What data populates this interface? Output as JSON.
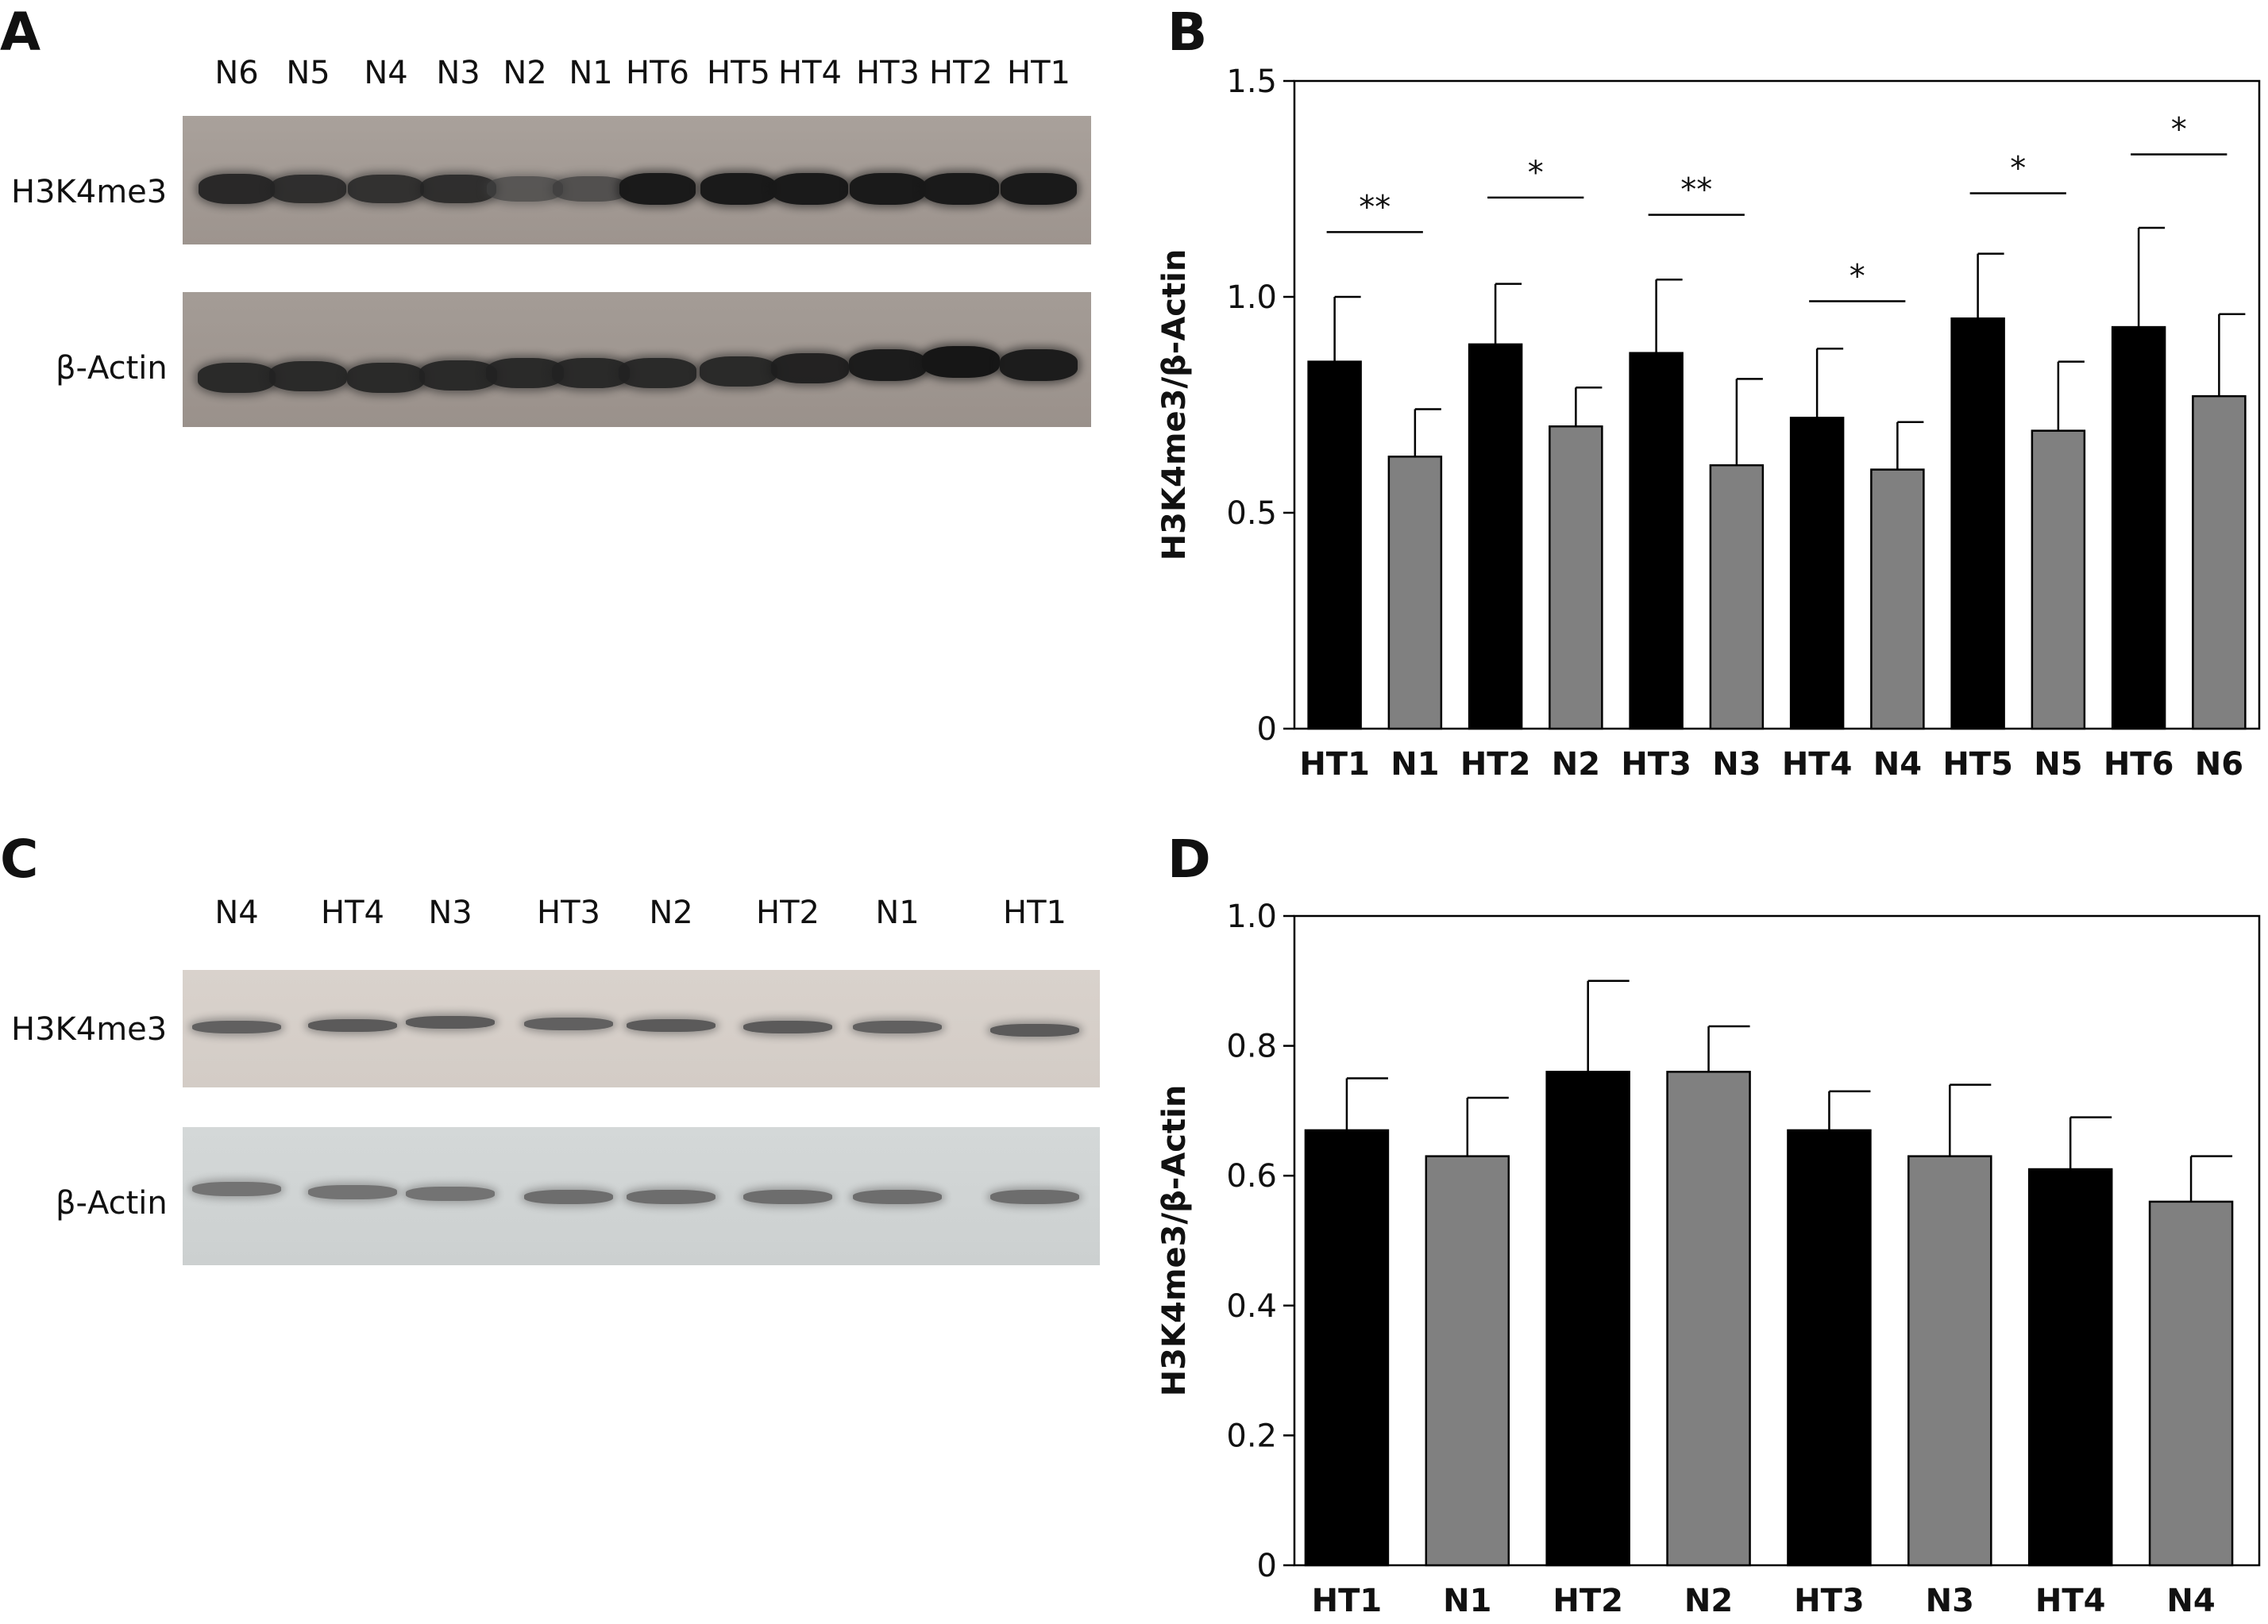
{
  "panels": {
    "A": {
      "letter": "A",
      "lanes": [
        "N6",
        "N5",
        "N4",
        "N3",
        "N2",
        "N1",
        "HT6",
        "HT5",
        "HT4",
        "HT3",
        "HT2",
        "HT1"
      ],
      "rows": [
        "H3K4me3",
        "β-Actin"
      ],
      "h3_intensity": [
        0.85,
        0.8,
        0.78,
        0.8,
        0.45,
        0.5,
        0.95,
        0.95,
        0.95,
        0.95,
        0.95,
        0.95
      ],
      "actin_intensity": [
        0.85,
        0.85,
        0.85,
        0.85,
        0.85,
        0.85,
        0.85,
        0.85,
        0.9,
        0.95,
        1.0,
        0.95
      ]
    },
    "C": {
      "letter": "C",
      "lanes": [
        "N4",
        "HT4",
        "N3",
        "HT3",
        "N2",
        "HT2",
        "N1",
        "HT1"
      ],
      "rows": [
        "H3K4me3",
        "β-Actin"
      ]
    }
  },
  "chart_data": [
    {
      "letter": "B",
      "type": "bar",
      "categories": [
        "HT1",
        "N1",
        "HT2",
        "N2",
        "HT3",
        "N3",
        "HT4",
        "N4",
        "HT5",
        "N5",
        "HT6",
        "N6"
      ],
      "values": [
        0.85,
        0.63,
        0.89,
        0.7,
        0.87,
        0.61,
        0.72,
        0.6,
        0.95,
        0.69,
        0.93,
        0.77
      ],
      "errors": [
        0.15,
        0.11,
        0.14,
        0.09,
        0.17,
        0.2,
        0.16,
        0.11,
        0.15,
        0.16,
        0.23,
        0.19
      ],
      "groups": [
        "HT",
        "N",
        "HT",
        "N",
        "HT",
        "N",
        "HT",
        "N",
        "HT",
        "N",
        "HT",
        "N"
      ],
      "ylabel": "H3K4me3/β-Actin",
      "ylim": [
        0,
        1.5
      ],
      "yticks": [
        "0",
        "0.5",
        "1.0",
        "1.5"
      ],
      "significance": [
        {
          "pair": [
            0,
            1
          ],
          "label": "**",
          "y": 1.15
        },
        {
          "pair": [
            2,
            3
          ],
          "label": "*",
          "y": 1.23
        },
        {
          "pair": [
            4,
            5
          ],
          "label": "**",
          "y": 1.19
        },
        {
          "pair": [
            6,
            7
          ],
          "label": "*",
          "y": 0.99
        },
        {
          "pair": [
            8,
            9
          ],
          "label": "*",
          "y": 1.24
        },
        {
          "pair": [
            10,
            11
          ],
          "label": "*",
          "y": 1.33
        }
      ],
      "colors": {
        "HT": "#000000",
        "N": "#808080"
      }
    },
    {
      "letter": "D",
      "type": "bar",
      "categories": [
        "HT1",
        "N1",
        "HT2",
        "N2",
        "HT3",
        "N3",
        "HT4",
        "N4"
      ],
      "values": [
        0.67,
        0.63,
        0.76,
        0.76,
        0.67,
        0.63,
        0.61,
        0.56
      ],
      "errors": [
        0.08,
        0.09,
        0.14,
        0.07,
        0.06,
        0.11,
        0.08,
        0.07
      ],
      "groups": [
        "HT",
        "N",
        "HT",
        "N",
        "HT",
        "N",
        "HT",
        "N"
      ],
      "ylabel": "H3K4me3/β-Actin",
      "ylim": [
        0,
        1.0
      ],
      "yticks": [
        "0",
        "0.2",
        "0.4",
        "0.6",
        "0.8",
        "1.0"
      ],
      "colors": {
        "HT": "#000000",
        "N": "#808080"
      }
    }
  ]
}
